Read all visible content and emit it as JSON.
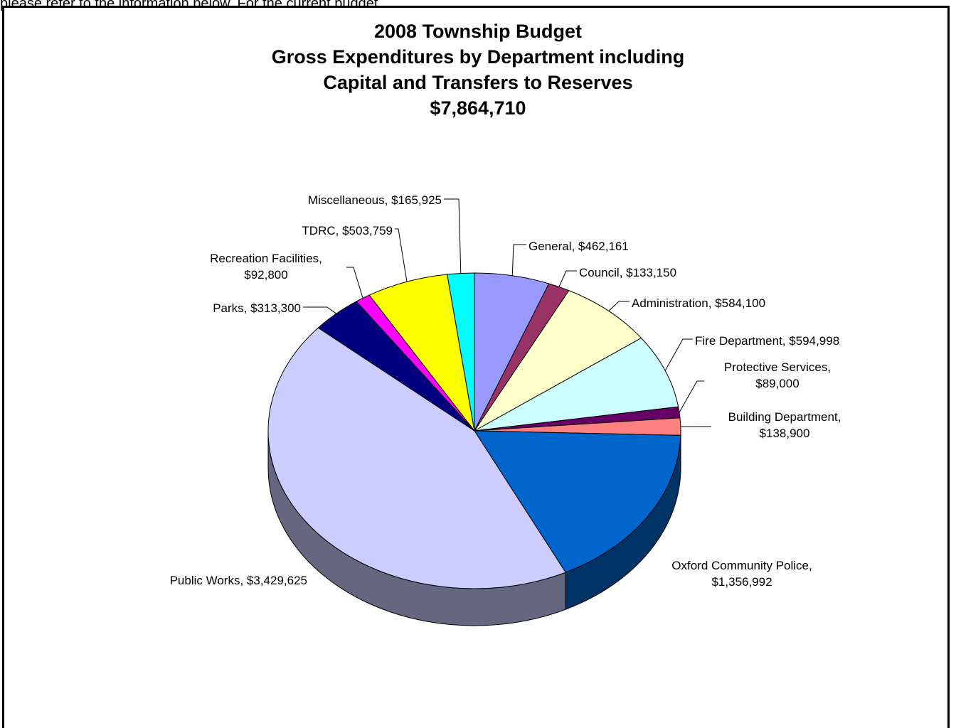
{
  "page": {
    "top_text": "please refer to the information below. For the current budget"
  },
  "chart_data": {
    "type": "pie",
    "title_lines": [
      "2008 Township Budget",
      "Gross Expenditures by Department including",
      "Capital and Transfers to Reserves",
      "$7,864,710"
    ],
    "total": 7864710,
    "three_d": true,
    "labels_outside": true,
    "slices": [
      {
        "name": "General",
        "value": 462161,
        "label_lines": [
          "General, $462,161"
        ],
        "color": "#9999FF"
      },
      {
        "name": "Council",
        "value": 133150,
        "label_lines": [
          "Council, $133,150"
        ],
        "color": "#993366"
      },
      {
        "name": "Administration",
        "value": 584100,
        "label_lines": [
          "Administration, $584,100"
        ],
        "color": "#FFFFCC"
      },
      {
        "name": "Fire Department",
        "value": 594998,
        "label_lines": [
          "Fire Department, $594,998"
        ],
        "color": "#CCFFFF"
      },
      {
        "name": "Protective Services",
        "value": 89000,
        "label_lines": [
          "Protective Services,",
          "$89,000"
        ],
        "color": "#660066"
      },
      {
        "name": "Building Department",
        "value": 138900,
        "label_lines": [
          "Building Department,",
          "$138,900"
        ],
        "color": "#FF8080"
      },
      {
        "name": "Oxford Community Police",
        "value": 1356992,
        "label_lines": [
          "Oxford Community Police,",
          "$1,356,992"
        ],
        "color": "#0066CC"
      },
      {
        "name": "Public Works",
        "value": 3429625,
        "label_lines": [
          "Public Works, $3,429,625"
        ],
        "color": "#CCCCFF"
      },
      {
        "name": "Parks",
        "value": 313300,
        "label_lines": [
          "Parks, $313,300"
        ],
        "color": "#000080"
      },
      {
        "name": "Recreation Facilities",
        "value": 92800,
        "label_lines": [
          "Recreation Facilities,",
          "$92,800"
        ],
        "color": "#FF00FF"
      },
      {
        "name": "TDRC",
        "value": 503759,
        "label_lines": [
          "TDRC, $503,759"
        ],
        "color": "#FFFF00"
      },
      {
        "name": "Miscellaneous",
        "value": 165925,
        "label_lines": [
          "Miscellaneous, $165,925"
        ],
        "color": "#00FFFF"
      }
    ]
  }
}
